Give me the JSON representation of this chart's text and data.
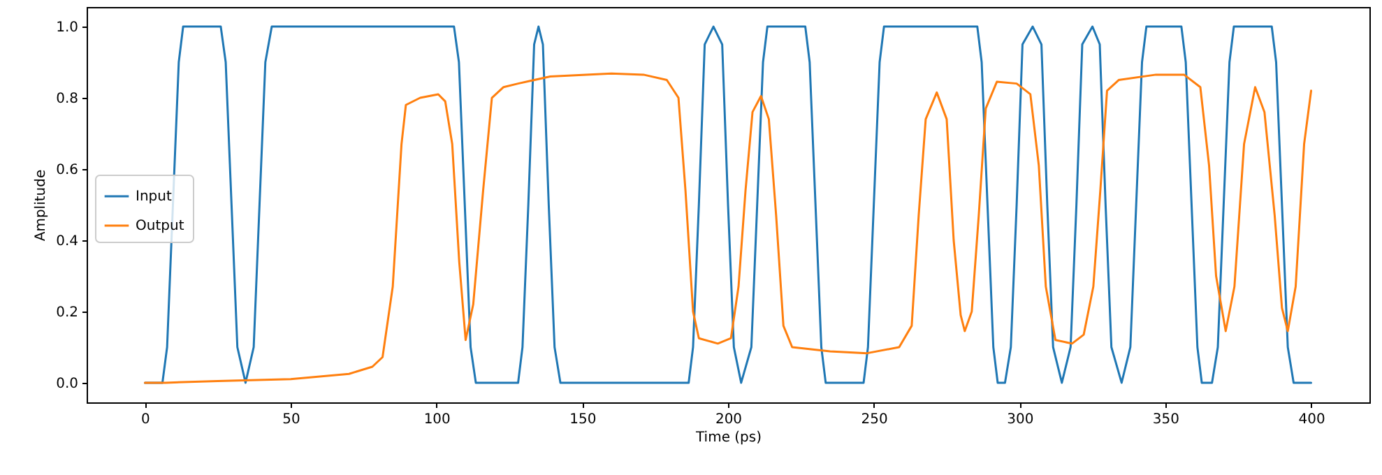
{
  "chart_data": {
    "type": "line",
    "xlabel": "Time (ps)",
    "ylabel": "Amplitude",
    "xlim": [
      -20,
      420
    ],
    "ylim": [
      -0.055,
      1.055
    ],
    "xticks": [
      0,
      50,
      100,
      150,
      200,
      250,
      300,
      350,
      400
    ],
    "yticks": [
      {
        "value": 0,
        "label": "0.0"
      },
      0.2,
      0.4,
      0.6,
      0.8,
      {
        "value": 1,
        "label": "1.0"
      }
    ],
    "grid": false,
    "legend": "left",
    "marker": "none",
    "line_style": "solid",
    "series": [
      {
        "name": "Input",
        "color": "#1f77b4",
        "x": [
          0,
          6,
          7.6,
          11.6,
          13.1,
          26,
          27.7,
          29.7,
          31.7,
          34.5,
          37.3,
          39.3,
          41.3,
          43.5,
          106,
          107.7,
          109.7,
          111.7,
          113.5,
          128,
          129.5,
          131.5,
          133.5,
          135,
          136.5,
          138.5,
          140.5,
          142.5,
          186.5,
          188,
          190,
          192,
          195,
          198,
          200,
          202,
          204.5,
          208,
          210,
          212,
          213.5,
          226.5,
          228,
          230,
          232,
          233.5,
          246.5,
          248,
          250,
          252,
          253.5,
          285.5,
          287,
          289,
          291,
          292.5,
          295,
          297,
          299,
          301,
          304.5,
          307.5,
          309.5,
          311.5,
          314.5,
          317.5,
          319.5,
          321.5,
          325,
          327.5,
          329.5,
          331.5,
          335,
          338,
          340,
          342,
          343.5,
          355.5,
          357,
          359,
          361,
          362.5,
          366,
          368,
          370,
          372,
          373.5,
          386.5,
          388,
          390,
          392,
          394,
          400
        ],
        "values": [
          0,
          0,
          0.1,
          0.9,
          1,
          1,
          0.9,
          0.5,
          0.1,
          0,
          0.1,
          0.5,
          0.9,
          1,
          1,
          0.9,
          0.5,
          0.1,
          0,
          0,
          0.1,
          0.5,
          0.95,
          1,
          0.95,
          0.5,
          0.1,
          0,
          0,
          0.1,
          0.5,
          0.95,
          1,
          0.95,
          0.5,
          0.1,
          0,
          0.1,
          0.5,
          0.9,
          1,
          1,
          0.9,
          0.5,
          0.1,
          0,
          0,
          0.1,
          0.5,
          0.9,
          1,
          1,
          0.9,
          0.5,
          0.1,
          0,
          0,
          0.1,
          0.5,
          0.95,
          1,
          0.95,
          0.5,
          0.1,
          0,
          0.1,
          0.5,
          0.95,
          1,
          0.95,
          0.5,
          0.1,
          0,
          0.1,
          0.5,
          0.9,
          1,
          1,
          0.9,
          0.5,
          0.1,
          0,
          0,
          0.1,
          0.5,
          0.9,
          1,
          1,
          0.9,
          0.5,
          0.1,
          0,
          0
        ]
      },
      {
        "name": "Output",
        "color": "#ff7f0e",
        "x": [
          0,
          7,
          25,
          50,
          70,
          78,
          81.5,
          85,
          88,
          89.5,
          94.4,
          100.6,
          103,
          105.4,
          107.8,
          110,
          112.6,
          116,
          119,
          123,
          128,
          139,
          160,
          171,
          179,
          183,
          185.4,
          188,
          190,
          196.5,
          201,
          203.6,
          206,
          208.4,
          211.3,
          214,
          216.5,
          219,
          222,
          235,
          247.7,
          258.7,
          263,
          265.4,
          267.8,
          271.6,
          275,
          277.4,
          279.8,
          281.2,
          283.6,
          286,
          288.4,
          292.2,
          299,
          303.7,
          306.6,
          309,
          312.3,
          318,
          322,
          325.3,
          327.7,
          330,
          334,
          346.8,
          356.4,
          362,
          365,
          367.4,
          370.7,
          373.7,
          377,
          380.8,
          384,
          387.5,
          390,
          392,
          394.7,
          397.6,
          400
        ],
        "values": [
          0,
          0,
          0.005,
          0.01,
          0.025,
          0.045,
          0.072,
          0.27,
          0.67,
          0.78,
          0.8,
          0.81,
          0.79,
          0.67,
          0.34,
          0.12,
          0.22,
          0.54,
          0.8,
          0.83,
          0.84,
          0.86,
          0.868,
          0.865,
          0.85,
          0.8,
          0.54,
          0.2,
          0.125,
          0.11,
          0.125,
          0.27,
          0.54,
          0.76,
          0.805,
          0.74,
          0.47,
          0.16,
          0.1,
          0.088,
          0.083,
          0.1,
          0.16,
          0.47,
          0.74,
          0.815,
          0.74,
          0.4,
          0.19,
          0.145,
          0.2,
          0.47,
          0.77,
          0.845,
          0.84,
          0.81,
          0.61,
          0.27,
          0.12,
          0.11,
          0.135,
          0.27,
          0.54,
          0.82,
          0.85,
          0.865,
          0.865,
          0.83,
          0.61,
          0.3,
          0.145,
          0.27,
          0.67,
          0.83,
          0.76,
          0.47,
          0.21,
          0.145,
          0.27,
          0.67,
          0.82
        ]
      }
    ]
  }
}
